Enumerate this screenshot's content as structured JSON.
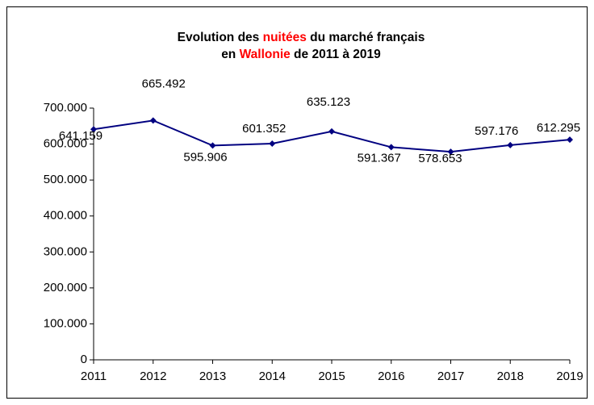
{
  "chart_data": {
    "type": "line",
    "title_lines": [
      [
        {
          "text": "Evolution des ",
          "color": "#000000"
        },
        {
          "text": "nuitées",
          "color": "#ff0000"
        },
        {
          "text": " du marché français",
          "color": "#000000"
        }
      ],
      [
        {
          "text": "en ",
          "color": "#000000"
        },
        {
          "text": "Wallonie",
          "color": "#ff0000"
        },
        {
          "text": " de 2011 à 2019",
          "color": "#000000"
        }
      ]
    ],
    "categories": [
      "2011",
      "2012",
      "2013",
      "2014",
      "2015",
      "2016",
      "2017",
      "2018",
      "2019"
    ],
    "values": [
      641159,
      665492,
      595906,
      601352,
      635123,
      591367,
      578653,
      597176,
      612295
    ],
    "value_labels": [
      "641.159",
      "665.492",
      "595.906",
      "601.352",
      "635.123",
      "591.367",
      "578.653",
      "597.176",
      "612.295"
    ],
    "color": "#000080",
    "ylim": [
      0,
      700000
    ],
    "yticks": [
      0,
      {
        "value": 100000,
        "label": "100.000"
      },
      {
        "value": 200000,
        "label": "200.000"
      },
      {
        "value": 300000,
        "label": "300.000"
      },
      {
        "value": 400000,
        "label": "400.000"
      },
      {
        "value": 500000,
        "label": "500.000"
      },
      {
        "value": 600000,
        "label": "600.000"
      },
      {
        "value": 700000,
        "label": "700.000"
      }
    ],
    "grid": false
  }
}
